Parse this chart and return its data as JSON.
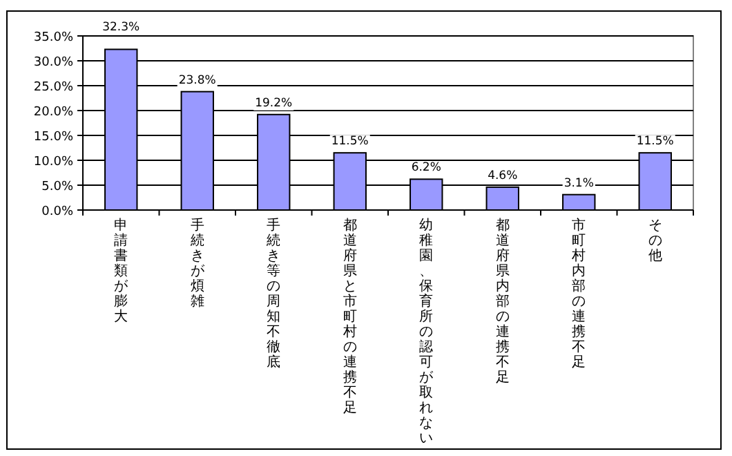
{
  "chart_data": {
    "type": "bar",
    "categories": [
      "申請書類が膨大",
      "手続きが煩雑",
      "手続き等の周知不徹底",
      "都道府県と市町村の連携不足",
      "幼稚園、保育所の認可が取れない",
      "都道府県内部の連携不足",
      "市町村内部の連携不足",
      "その他"
    ],
    "values": [
      32.3,
      23.8,
      19.2,
      11.5,
      6.2,
      4.6,
      3.1,
      11.5
    ],
    "color": "#9999ff",
    "ylim": [
      0,
      35
    ],
    "yticks": [
      {
        "value": 0,
        "label": "0.0%"
      },
      {
        "value": 5,
        "label": "5.0%"
      },
      {
        "value": 10,
        "label": "10.0%"
      },
      {
        "value": 15,
        "label": "15.0%"
      },
      {
        "value": 20,
        "label": "20.0%"
      },
      {
        "value": 25,
        "label": "25.0%"
      },
      {
        "value": 30,
        "label": "30.0%"
      },
      {
        "value": 35,
        "label": "35.0%"
      }
    ],
    "value_labels": [
      "32.3%",
      "23.8%",
      "19.2%",
      "11.5%",
      "6.2%",
      "4.6%",
      "3.1%",
      "11.5%"
    ],
    "grid": "y"
  }
}
